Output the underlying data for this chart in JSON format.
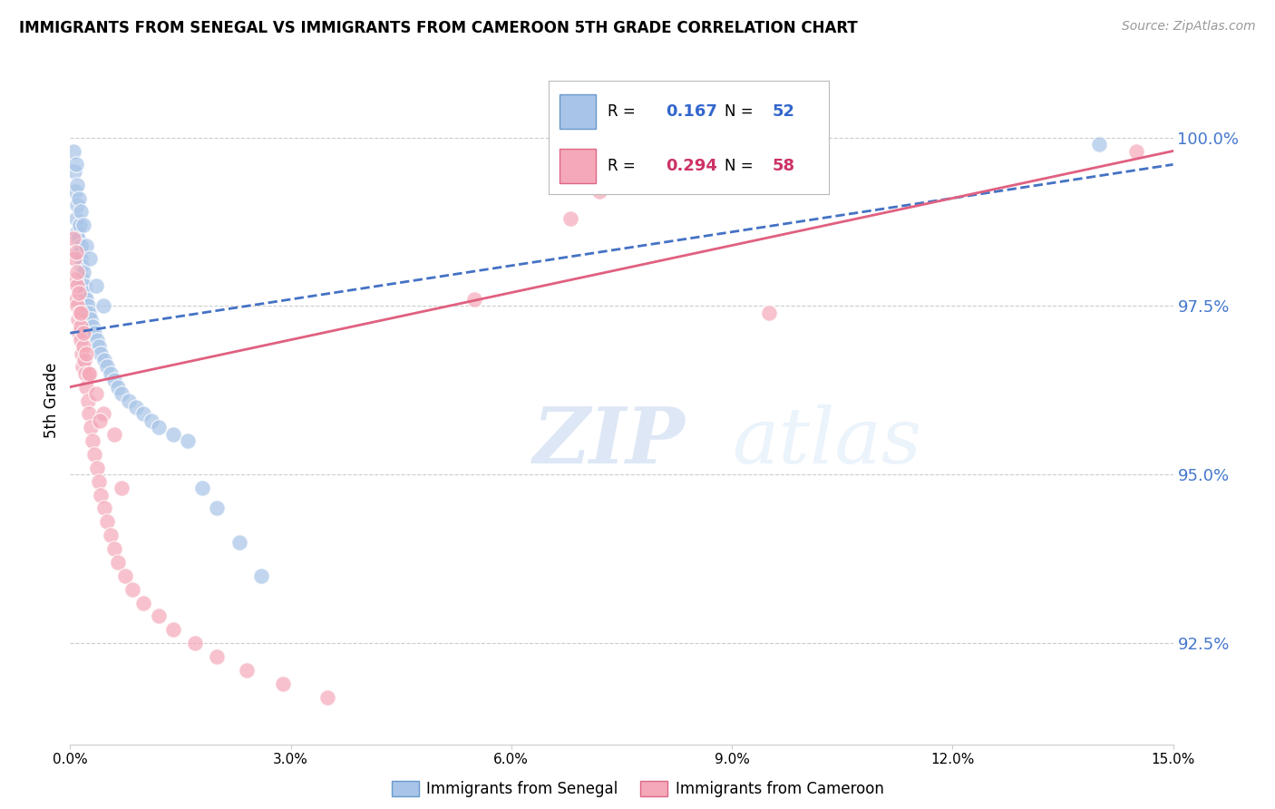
{
  "title": "IMMIGRANTS FROM SENEGAL VS IMMIGRANTS FROM CAMEROON 5TH GRADE CORRELATION CHART",
  "source": "Source: ZipAtlas.com",
  "ylabel": "5th Grade",
  "yticks": [
    92.5,
    95.0,
    97.5,
    100.0
  ],
  "ytick_labels": [
    "92.5%",
    "95.0%",
    "97.5%",
    "100.0%"
  ],
  "xmin": 0.0,
  "xmax": 15.0,
  "ymin": 91.0,
  "ymax": 101.2,
  "senegal_color": "#a8c4e8",
  "cameroon_color": "#f4a8b8",
  "senegal_line_color": "#4472c4",
  "cameroon_line_color": "#e06080",
  "senegal_R": 0.167,
  "senegal_N": 52,
  "cameroon_R": 0.294,
  "cameroon_N": 58,
  "senegal_x": [
    0.05,
    0.06,
    0.07,
    0.08,
    0.09,
    0.1,
    0.11,
    0.12,
    0.13,
    0.14,
    0.15,
    0.16,
    0.17,
    0.18,
    0.19,
    0.2,
    0.22,
    0.24,
    0.26,
    0.28,
    0.3,
    0.33,
    0.36,
    0.39,
    0.42,
    0.46,
    0.5,
    0.55,
    0.6,
    0.65,
    0.7,
    0.8,
    0.9,
    1.0,
    1.1,
    1.2,
    1.4,
    1.6,
    1.8,
    2.0,
    2.3,
    2.6,
    0.08,
    0.1,
    0.12,
    0.15,
    0.18,
    0.22,
    0.27,
    0.35,
    0.45,
    14.0
  ],
  "senegal_y": [
    99.8,
    99.5,
    99.2,
    98.8,
    99.0,
    98.6,
    98.5,
    98.3,
    98.7,
    98.4,
    98.2,
    98.1,
    97.9,
    98.0,
    97.8,
    97.7,
    97.6,
    97.5,
    97.4,
    97.3,
    97.2,
    97.1,
    97.0,
    96.9,
    96.8,
    96.7,
    96.6,
    96.5,
    96.4,
    96.3,
    96.2,
    96.1,
    96.0,
    95.9,
    95.8,
    95.7,
    95.6,
    95.5,
    94.8,
    94.5,
    94.0,
    93.5,
    99.6,
    99.3,
    99.1,
    98.9,
    98.7,
    98.4,
    98.2,
    97.8,
    97.5,
    99.9
  ],
  "cameroon_x": [
    0.05,
    0.06,
    0.07,
    0.08,
    0.09,
    0.1,
    0.11,
    0.12,
    0.13,
    0.14,
    0.15,
    0.16,
    0.17,
    0.18,
    0.19,
    0.2,
    0.22,
    0.24,
    0.26,
    0.28,
    0.3,
    0.33,
    0.36,
    0.39,
    0.42,
    0.46,
    0.5,
    0.55,
    0.6,
    0.65,
    0.75,
    0.85,
    1.0,
    1.2,
    1.4,
    1.7,
    2.0,
    2.4,
    2.9,
    3.5,
    0.08,
    0.1,
    0.12,
    0.15,
    0.18,
    0.22,
    0.27,
    0.35,
    0.45,
    0.6,
    5.5,
    6.8,
    7.2,
    9.5,
    0.25,
    0.4,
    0.7,
    14.5
  ],
  "cameroon_y": [
    98.5,
    98.2,
    97.9,
    97.6,
    97.8,
    97.5,
    97.3,
    97.1,
    97.4,
    97.2,
    97.0,
    96.8,
    96.6,
    96.9,
    96.7,
    96.5,
    96.3,
    96.1,
    95.9,
    95.7,
    95.5,
    95.3,
    95.1,
    94.9,
    94.7,
    94.5,
    94.3,
    94.1,
    93.9,
    93.7,
    93.5,
    93.3,
    93.1,
    92.9,
    92.7,
    92.5,
    92.3,
    92.1,
    91.9,
    91.7,
    98.3,
    98.0,
    97.7,
    97.4,
    97.1,
    96.8,
    96.5,
    96.2,
    95.9,
    95.6,
    97.6,
    98.8,
    99.2,
    97.4,
    96.5,
    95.8,
    94.8,
    99.8
  ],
  "watermark_zip": "ZIP",
  "watermark_atlas": "atlas",
  "grid_color": "#cccccc",
  "bg_color": "#ffffff"
}
